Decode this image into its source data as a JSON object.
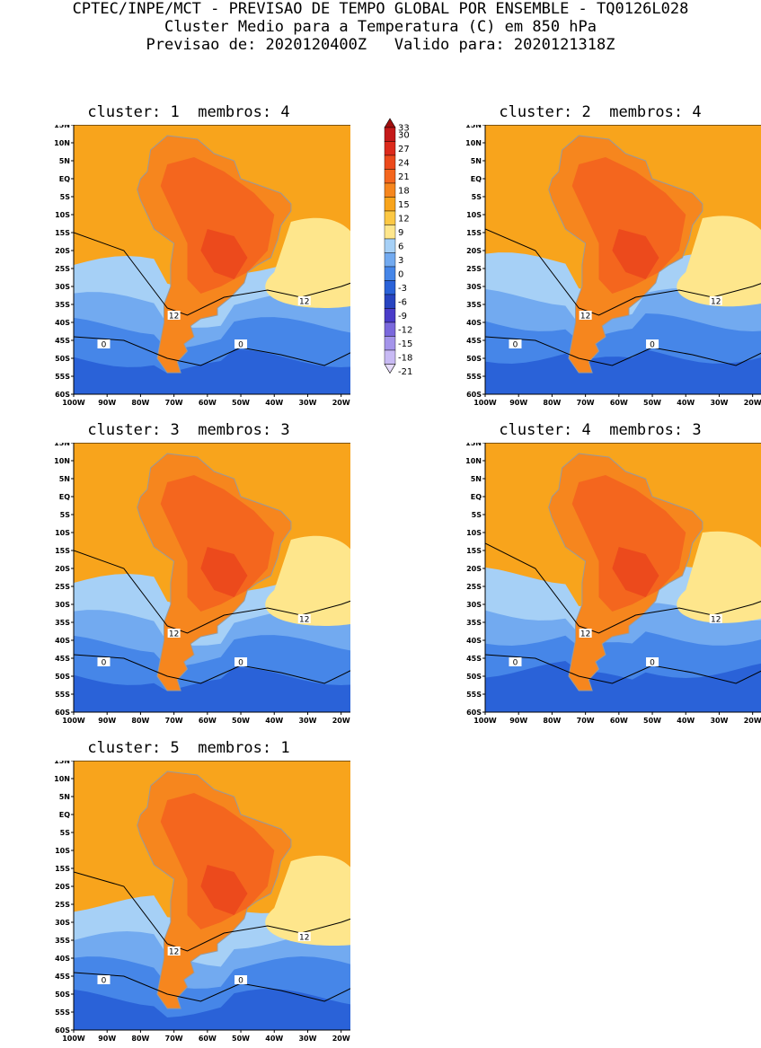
{
  "header": {
    "line1": "CPTEC/INPE/MCT - PREVISAO DE TEMPO GLOBAL POR ENSEMBLE - TQ0126L028",
    "line2": "Cluster Medio para a Temperatura (C) em 850 hPa",
    "line3": "Previsao de: 2020120400Z   Valido para: 2020121318Z"
  },
  "panels": [
    {
      "title": "cluster: 1  membros: 4"
    },
    {
      "title": "cluster: 2  membros: 4"
    },
    {
      "title": "cluster: 3  membros: 3"
    },
    {
      "title": "cluster: 4  membros: 3"
    },
    {
      "title": "cluster: 5  membros: 1"
    }
  ],
  "axes": {
    "lat_labels": [
      "15N",
      "10N",
      "5N",
      "EQ",
      "5S",
      "10S",
      "15S",
      "20S",
      "25S",
      "30S",
      "35S",
      "40S",
      "45S",
      "50S",
      "55S",
      "60S"
    ],
    "lon_labels": [
      "100W",
      "90W",
      "80W",
      "70W",
      "60W",
      "50W",
      "40W",
      "30W",
      "20W"
    ]
  },
  "contour_labels": [
    "12",
    "0"
  ],
  "colorbar": {
    "labels": [
      "33",
      "30",
      "27",
      "24",
      "21",
      "18",
      "15",
      "12",
      "9",
      "6",
      "3",
      "0",
      "-3",
      "-6",
      "-9",
      "-12",
      "-15",
      "-18",
      "-21"
    ],
    "colors": [
      "#a01010",
      "#c41a1a",
      "#dc2a1c",
      "#ec4a1c",
      "#f4661e",
      "#f6861e",
      "#f8a41c",
      "#fcc844",
      "#fee68c",
      "#a6d0f6",
      "#72aaf0",
      "#4686e8",
      "#2a62d8",
      "#2844c0",
      "#4a3cc8",
      "#7a68dc",
      "#a494ea",
      "#c8baf4",
      "#e6dcfa"
    ]
  }
}
